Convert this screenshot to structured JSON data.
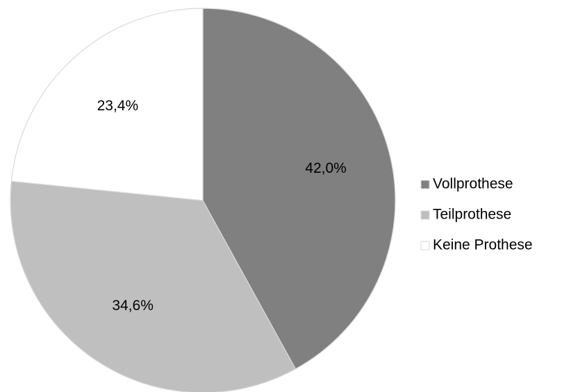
{
  "chart_data": {
    "type": "pie",
    "categories": [
      "Vollprothese",
      "Teilprothese",
      "Keine Prothese"
    ],
    "values": [
      42.0,
      34.6,
      23.4
    ],
    "value_labels": [
      "42,0%",
      "34,6%",
      "23,4%"
    ],
    "colors": [
      "#808080",
      "#bfbfbf",
      "#ffffff"
    ],
    "legend": "right"
  }
}
